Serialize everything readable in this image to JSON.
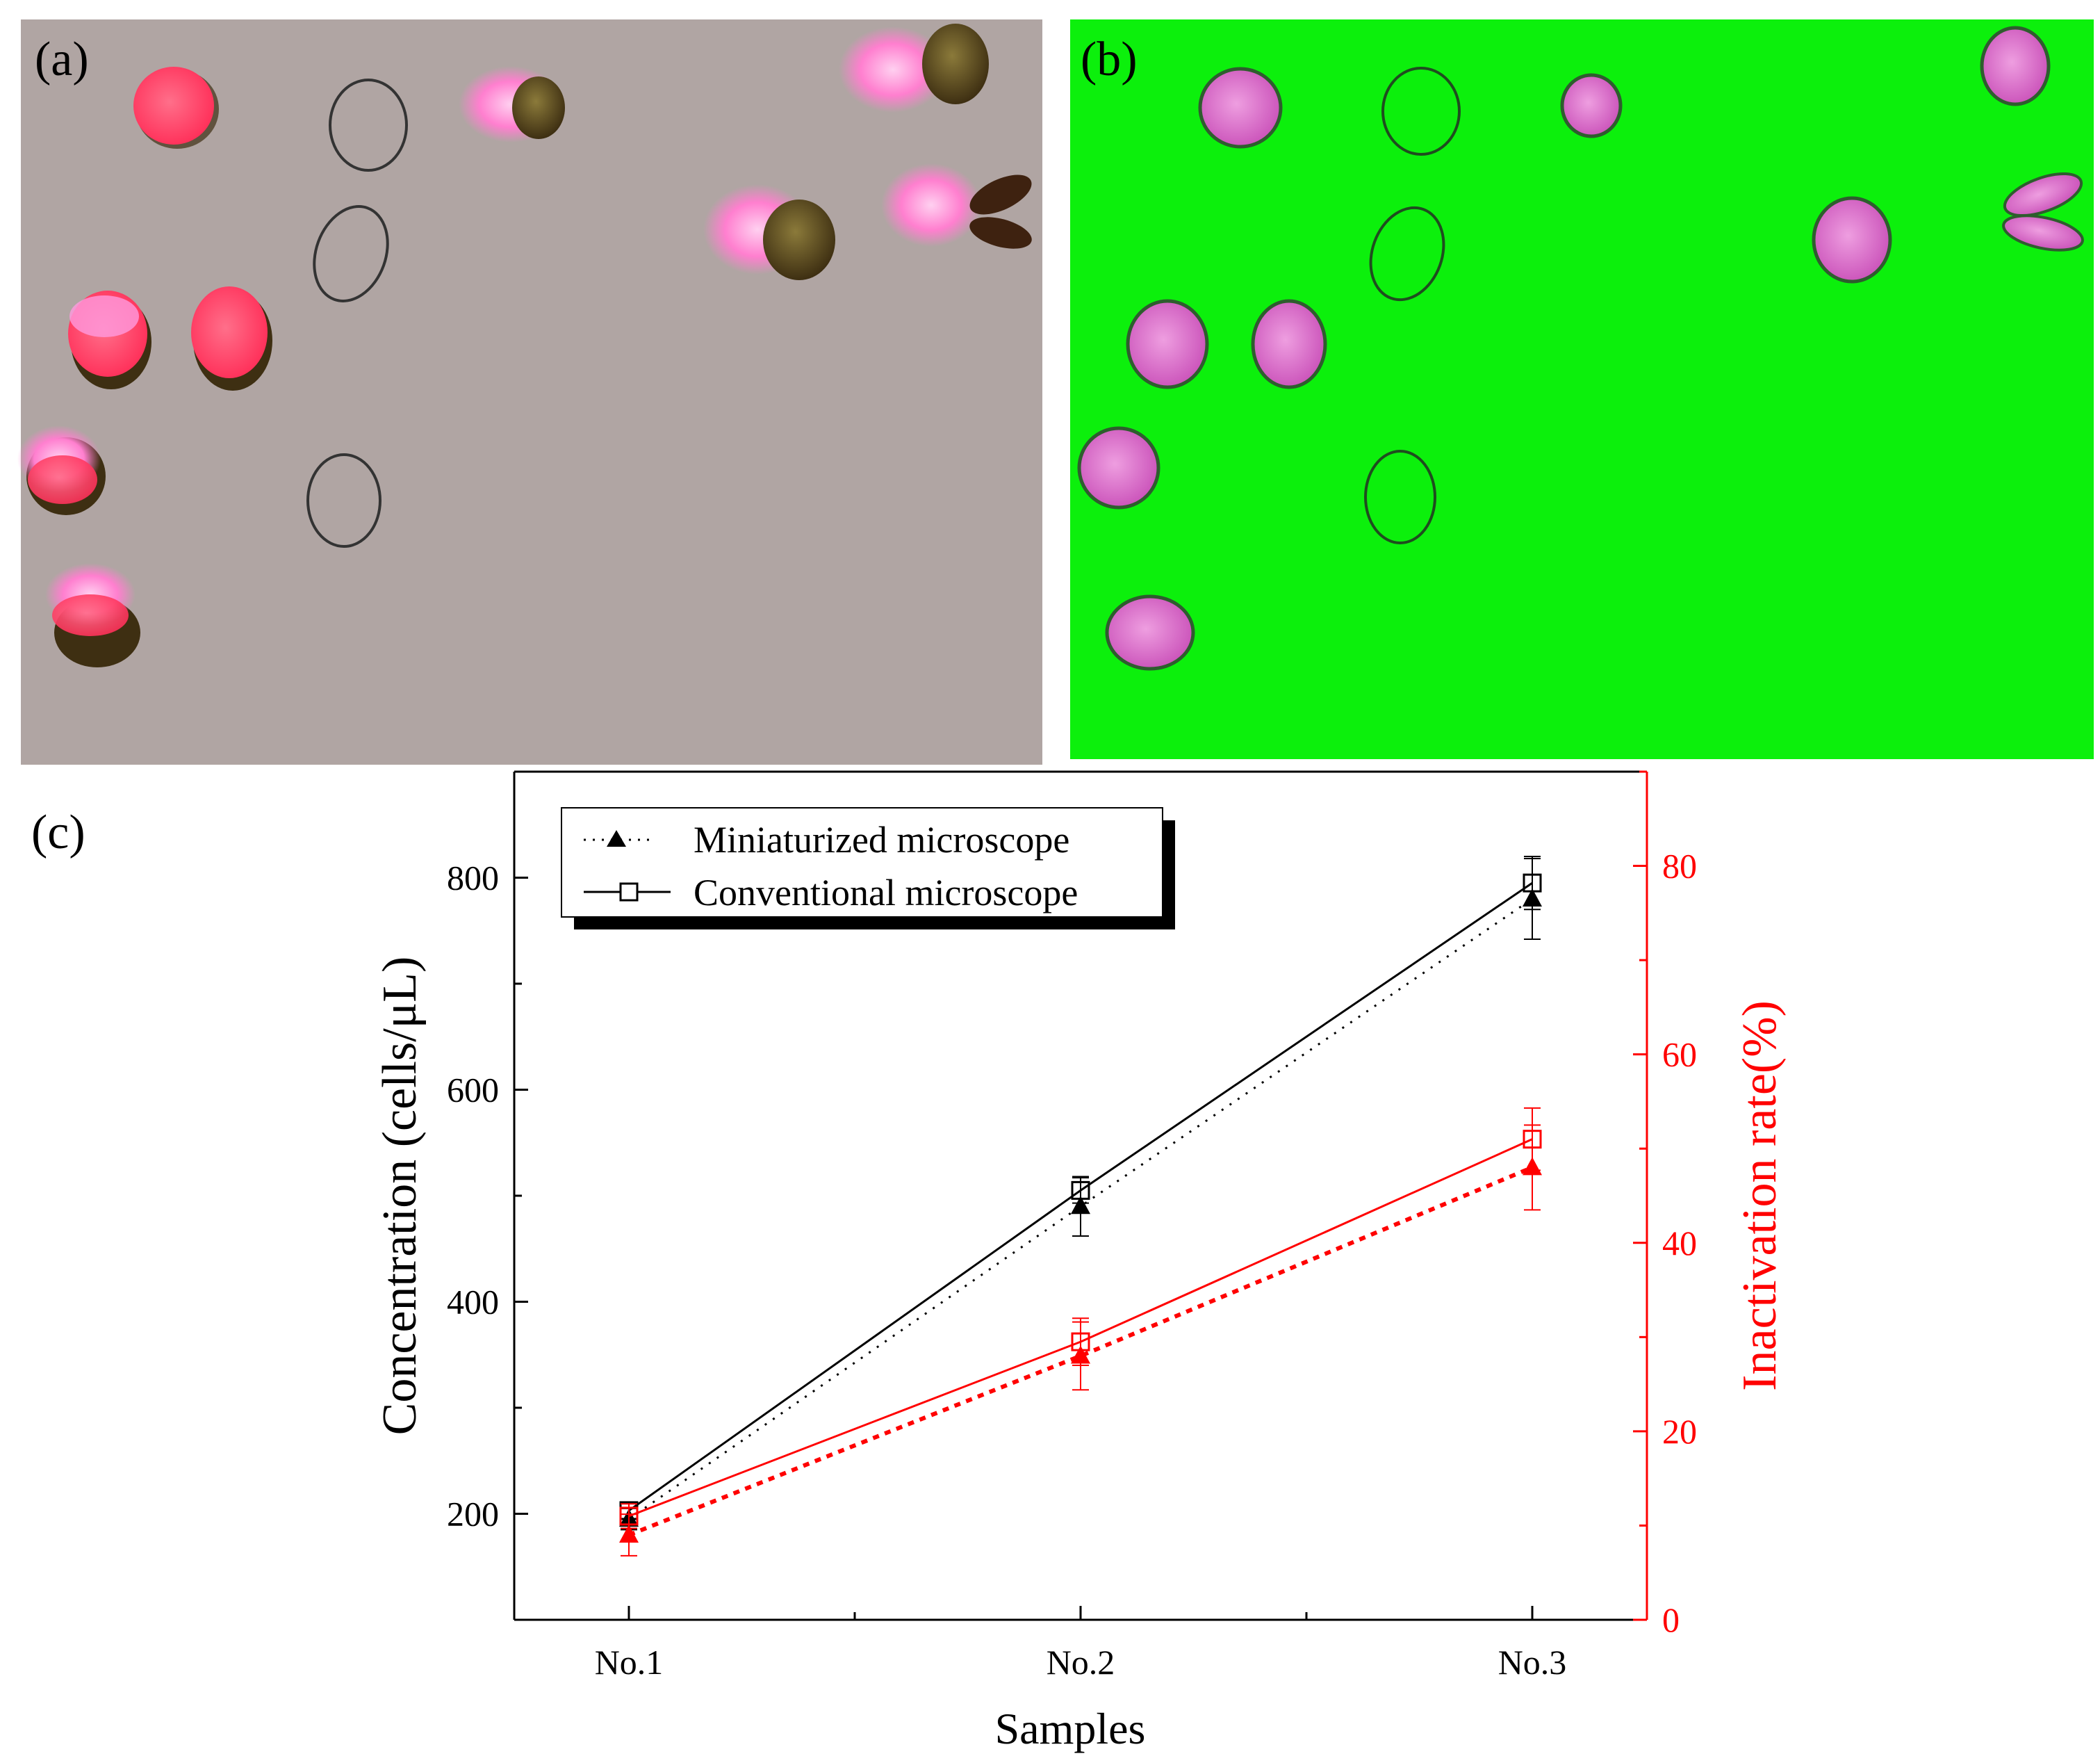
{
  "panels": {
    "a_label": "(a)",
    "b_label": "(b)",
    "c_label": "(c)"
  },
  "colors": {
    "micro_a_bg": "#b0a5a3",
    "micro_b_bg": "#0cf00c",
    "cell_red": "#ff3d6a",
    "cell_pink_glow": "#ff7fc9",
    "cell_brown": "#5a4820",
    "cell_magenta": "#d760c8",
    "left_axis": "#000000",
    "right_axis": "#ff0000"
  },
  "chart_data": {
    "type": "line",
    "categories": [
      "No.1",
      "No.2",
      "No.3"
    ],
    "xlabel": "Samples",
    "ylabel": "Concentration (cells/μL)",
    "ylabel2": "Inactivation rate(%)",
    "ylim": [
      100,
      900
    ],
    "ylim2": [
      0,
      90
    ],
    "yticks": [
      200,
      400,
      600,
      800
    ],
    "yticks2": [
      0,
      20,
      40,
      60,
      80
    ],
    "legend": {
      "position": "top-left",
      "entries": [
        "Miniaturized microscope",
        "Conventional microscope"
      ]
    },
    "series": [
      {
        "name": "Miniaturized microscope",
        "axis": "left",
        "color": "#000000",
        "style": "dotted",
        "marker": "filled-triangle",
        "values": [
          195,
          490,
          780
        ],
        "errors": [
          10,
          28,
          38
        ]
      },
      {
        "name": "Conventional microscope",
        "axis": "left",
        "color": "#000000",
        "style": "solid",
        "marker": "open-square",
        "values": [
          203,
          505,
          795
        ],
        "errors": [
          8,
          12,
          25
        ]
      },
      {
        "name": "Miniaturized microscope",
        "axis": "right",
        "color": "#ff0000",
        "style": "dotted",
        "marker": "filled-triangle",
        "values": [
          9,
          28,
          48
        ],
        "errors": [
          2.2,
          3.6,
          4.5
        ]
      },
      {
        "name": "Conventional microscope",
        "axis": "right",
        "color": "#ff0000",
        "style": "solid",
        "marker": "open-square",
        "values": [
          11,
          29.5,
          51
        ],
        "errors": [
          1.3,
          2.5,
          3.3
        ]
      }
    ]
  }
}
